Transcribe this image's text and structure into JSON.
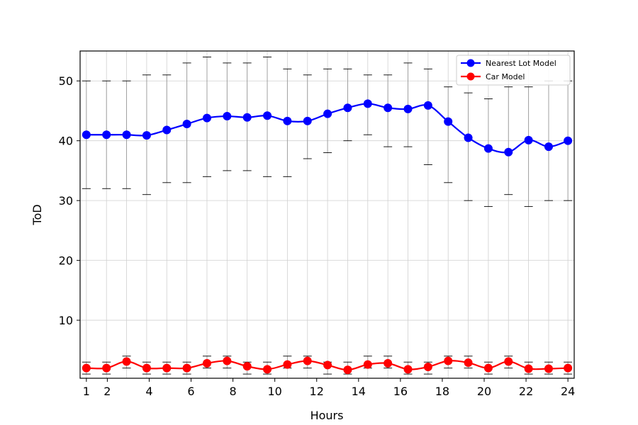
{
  "chart_data": {
    "type": "line",
    "title": "",
    "xlabel": "Hours",
    "ylabel": "ToD",
    "xlim": [
      0.7,
      24.3
    ],
    "ylim": [
      0.3,
      55
    ],
    "x_ticks": [
      1,
      2,
      4,
      6,
      8,
      10,
      12,
      14,
      16,
      18,
      20,
      22,
      24
    ],
    "y_ticks": [
      10,
      20,
      30,
      40,
      50
    ],
    "grid": true,
    "legend_position": "top-right",
    "x": [
      1.0,
      1.96,
      2.92,
      3.88,
      4.84,
      5.8,
      6.76,
      7.72,
      8.68,
      9.64,
      10.6,
      11.56,
      12.52,
      13.48,
      14.44,
      15.4,
      16.36,
      17.32,
      18.28,
      19.24,
      20.2,
      21.16,
      22.12,
      23.08,
      24.0
    ],
    "series": [
      {
        "name": "Nearest Lot Model",
        "color": "#0000ff",
        "values": [
          41.0,
          41.0,
          41.0,
          40.9,
          41.8,
          42.8,
          43.8,
          44.1,
          43.9,
          44.2,
          43.3,
          43.3,
          44.5,
          45.5,
          46.2,
          45.5,
          45.3,
          45.9,
          43.2,
          40.5,
          38.7,
          38.1,
          40.1,
          39.0,
          40.0
        ],
        "err_low": [
          32,
          32,
          32,
          31,
          33,
          33,
          34,
          35,
          35,
          34,
          34,
          37,
          38,
          40,
          41,
          39,
          39,
          36,
          33,
          30,
          29,
          31,
          29,
          30,
          30
        ],
        "err_high": [
          50,
          50,
          50,
          51,
          51,
          53,
          54,
          53,
          53,
          54,
          52,
          51,
          52,
          52,
          51,
          51,
          53,
          52,
          49,
          48,
          47,
          49,
          49,
          50,
          50
        ]
      },
      {
        "name": "Car Model",
        "color": "#ff0000",
        "values": [
          2.0,
          2.0,
          3.1,
          2.0,
          2.0,
          2.0,
          2.8,
          3.2,
          2.3,
          1.8,
          2.6,
          3.2,
          2.5,
          1.7,
          2.6,
          2.8,
          1.8,
          2.2,
          3.2,
          2.9,
          2.0,
          3.1,
          1.9,
          1.9,
          2.0
        ],
        "err_low": [
          1,
          1,
          2,
          1,
          1,
          1,
          2,
          2,
          1,
          1,
          2,
          2,
          1,
          1,
          2,
          2,
          1,
          1,
          2,
          2,
          1,
          2,
          1,
          1,
          1
        ],
        "err_high": [
          3,
          3,
          4,
          3,
          3,
          3,
          4,
          4,
          3,
          3,
          4,
          4,
          3,
          3,
          4,
          4,
          3,
          3,
          4,
          4,
          3,
          4,
          3,
          3,
          3
        ]
      }
    ]
  }
}
